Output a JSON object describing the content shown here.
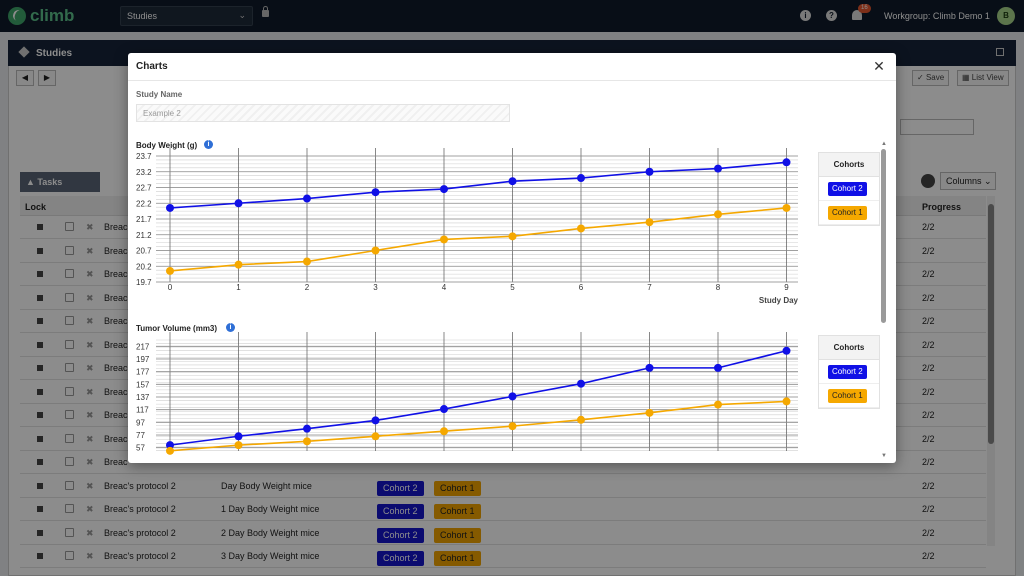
{
  "app": {
    "logo_text": "climb",
    "study_select": "Studies",
    "workgroup": "Workgroup: Climb Demo 1",
    "notification_count": "16",
    "avatar_initial": "B"
  },
  "panel": {
    "title": "Studies",
    "save_label": "Save",
    "list_view_label": "List View",
    "columns_label": "Columns",
    "tasks_label": "Tasks",
    "headers": {
      "lock": "Lock",
      "progress": "Progress"
    }
  },
  "rows": [
    {
      "protocol": "Breac",
      "task": "",
      "progress": "2/2"
    },
    {
      "protocol": "Breac",
      "task": "",
      "progress": "2/2"
    },
    {
      "protocol": "Breac",
      "task": "",
      "progress": "2/2"
    },
    {
      "protocol": "Breac",
      "task": "",
      "progress": "2/2"
    },
    {
      "protocol": "Breac",
      "task": "",
      "progress": "2/2"
    },
    {
      "protocol": "Breac",
      "task": "",
      "progress": "2/2"
    },
    {
      "protocol": "Breac",
      "task": "",
      "progress": "2/2"
    },
    {
      "protocol": "Breac",
      "task": "",
      "progress": "2/2"
    },
    {
      "protocol": "Breac",
      "task": "",
      "progress": "2/2"
    },
    {
      "protocol": "Breac",
      "task": "",
      "progress": "2/2"
    },
    {
      "protocol": "Breac",
      "task": "",
      "progress": "2/2"
    },
    {
      "protocol": "Breac's protocol 2",
      "task": "Day Body Weight mice",
      "progress": "2/2"
    },
    {
      "protocol": "Breac's protocol 2",
      "task": "1 Day Body Weight mice",
      "progress": "2/2"
    },
    {
      "protocol": "Breac's protocol 2",
      "task": "2 Day Body Weight mice",
      "progress": "2/2"
    },
    {
      "protocol": "Breac's protocol 2",
      "task": "3 Day Body Weight mice",
      "progress": "2/2"
    }
  ],
  "modal": {
    "title": "Charts",
    "study_name_label": "Study Name",
    "study_name_value": "Example 2",
    "legend_title": "Cohorts",
    "legend_items": [
      "Cohort 2",
      "Cohort 1"
    ]
  },
  "colors": {
    "cohort2": "#1010e6",
    "cohort1": "#f5a800"
  },
  "chart_data": [
    {
      "type": "line",
      "title": "Body Weight (g)",
      "xlabel": "Study Day",
      "ylabel": "",
      "x": [
        0,
        1,
        2,
        3,
        4,
        5,
        6,
        7,
        8,
        9
      ],
      "yticks": [
        "19.7",
        "20.2",
        "20.7",
        "21.2",
        "21.7",
        "22.2",
        "22.7",
        "23.2",
        "23.7"
      ],
      "ylim": [
        19.7,
        23.7
      ],
      "grid": true,
      "legend": "right",
      "series": [
        {
          "name": "Cohort 2",
          "values": [
            22.05,
            22.2,
            22.35,
            22.55,
            22.65,
            22.9,
            23.0,
            23.2,
            23.3,
            23.5
          ]
        },
        {
          "name": "Cohort 1",
          "values": [
            20.05,
            20.25,
            20.35,
            20.7,
            21.05,
            21.15,
            21.4,
            21.6,
            21.85,
            22.05
          ]
        }
      ]
    },
    {
      "type": "line",
      "title": "Tumor Volume (mm3)",
      "xlabel": "",
      "ylabel": "",
      "x": [
        0,
        1,
        2,
        3,
        4,
        5,
        6,
        7,
        8,
        9
      ],
      "yticks": [
        "57",
        "77",
        "97",
        "117",
        "137",
        "157",
        "177",
        "197",
        "217"
      ],
      "ylim": [
        47,
        227
      ],
      "grid": true,
      "legend": "right",
      "series": [
        {
          "name": "Cohort 2",
          "values": [
            61,
            75,
            87,
            100,
            118,
            138,
            158,
            183,
            183,
            210
          ]
        },
        {
          "name": "Cohort 1",
          "values": [
            52,
            61,
            67,
            75,
            83,
            91,
            101,
            112,
            125,
            130
          ]
        }
      ]
    }
  ]
}
